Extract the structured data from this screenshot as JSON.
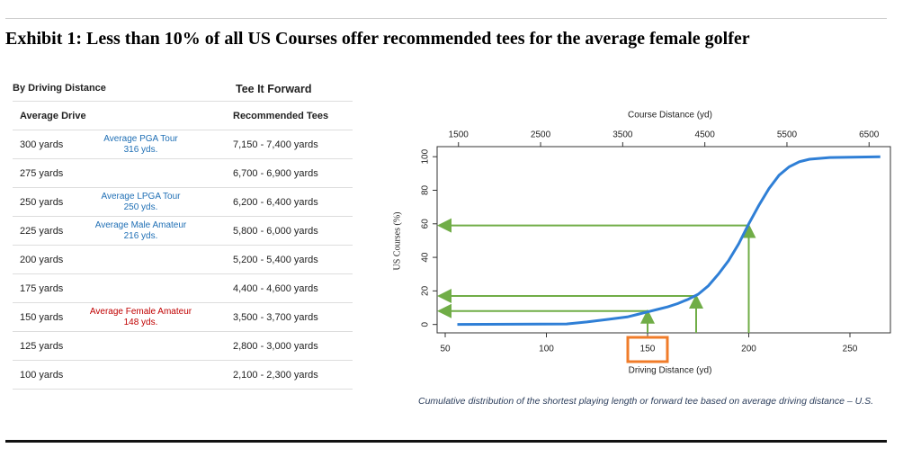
{
  "header": {
    "title": "Exhibit 1: Less than 10% of all US Courses offer recommended tees for the average female golfer"
  },
  "table": {
    "group_headers": [
      "By Driving Distance",
      "Tee It Forward"
    ],
    "columns": [
      "Average Drive",
      "Recommended Tees"
    ],
    "rows": [
      {
        "drive": "300 yards",
        "note": {
          "text": "Average PGA Tour",
          "sub": "316 yds.",
          "color": "#1f6fb5"
        },
        "tees": "7,150 - 7,400 yards"
      },
      {
        "drive": "275 yards",
        "tees": "6,700 - 6,900 yards"
      },
      {
        "drive": "250 yards",
        "note": {
          "text": "Average LPGA Tour",
          "sub": "250 yds.",
          "color": "#1f6fb5"
        },
        "tees": "6,200 - 6,400 yards"
      },
      {
        "drive": "225 yards",
        "note": {
          "text": "Average Male Amateur",
          "sub": "216 yds.",
          "color": "#1f6fb5"
        },
        "tees": "5,800 - 6,000 yards"
      },
      {
        "drive": "200 yards",
        "tees": "5,200 - 5,400 yards"
      },
      {
        "drive": "175 yards",
        "tees": "4,400 - 4,600 yards"
      },
      {
        "drive": "150 yards",
        "note": {
          "text": "Average Female Amateur",
          "sub": "148 yds.",
          "color": "#c00000"
        },
        "tees": "3,500 - 3,700 yards"
      },
      {
        "drive": "125 yards",
        "tees": "2,800 - 3,000 yards"
      },
      {
        "drive": "100 yards",
        "tees": "2,100 - 2,300 yards"
      }
    ]
  },
  "chart_data": {
    "type": "line",
    "xlabel": "Driving Distance (yd)",
    "x2label": "Course Distance (yd)",
    "ylabel": "US Courses (%)",
    "xlim": [
      46,
      270
    ],
    "xticks": [
      50,
      100,
      150,
      200,
      250
    ],
    "x2lim": [
      1240,
      6760
    ],
    "x2ticks": [
      1500,
      2500,
      3500,
      4500,
      5500,
      6500
    ],
    "ylim": [
      -5,
      106
    ],
    "yticks": [
      0,
      20,
      40,
      60,
      80,
      100
    ],
    "highlight_xtick": 150,
    "highlight_color": "#f07c2a",
    "series": [
      {
        "color": "#2f7fd6",
        "x": [
          56,
          110,
          120,
          130,
          140,
          145,
          150,
          155,
          160,
          165,
          170,
          175,
          180,
          185,
          190,
          195,
          200,
          205,
          210,
          215,
          220,
          225,
          230,
          240,
          265
        ],
        "values": [
          0,
          0.3,
          1.5,
          3,
          4.5,
          6,
          7.5,
          9,
          10.5,
          12.5,
          15,
          18,
          23,
          30,
          38,
          48,
          60,
          71,
          81,
          89,
          94,
          97,
          98.5,
          99.5,
          100
        ]
      }
    ],
    "guide_color": "#70ad47",
    "guides": [
      {
        "x": 150,
        "y": 8
      },
      {
        "x": 174,
        "y": 17
      },
      {
        "x": 200,
        "y": 59
      }
    ]
  },
  "caption": "Cumulative distribution of the shortest playing length or forward tee based on average driving distance – U.S."
}
